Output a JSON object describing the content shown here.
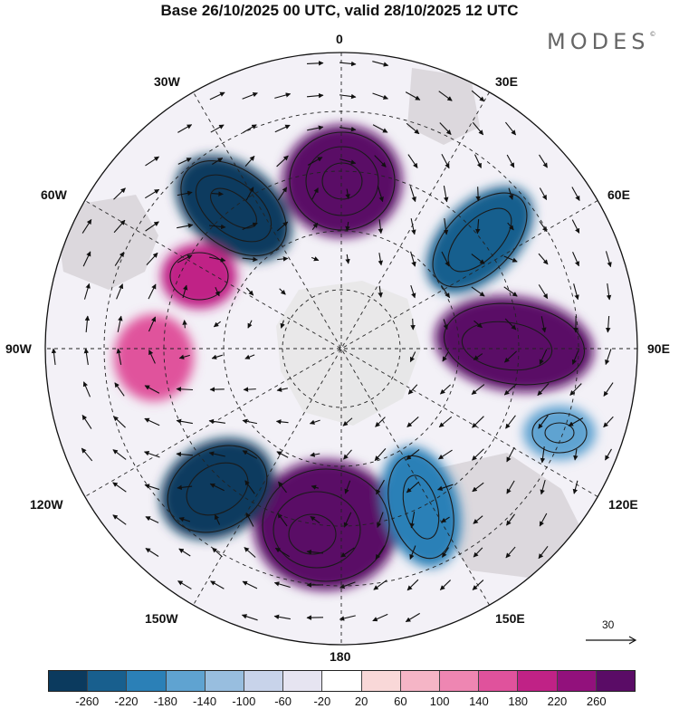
{
  "title": "Base 26/10/2025 00 UTC, valid 28/10/2025 12 UTC",
  "brand": {
    "name": "MODES",
    "mark": "©"
  },
  "meridian_labels": {
    "top": "0",
    "bottom": "180",
    "left": "90W",
    "right": "90E",
    "tl1": "30W",
    "tl2": "60W",
    "tr1": "30E",
    "tr2": "60E",
    "bl1": "120W",
    "bl2": "150W",
    "br1": "120E",
    "br2": "150E"
  },
  "reference_vector": {
    "label": "30"
  },
  "colorbar": {
    "colors": [
      "#0b3a5e",
      "#185f8e",
      "#2b80b7",
      "#5fa3d1",
      "#98bedf",
      "#c8d3ea",
      "#e6e4f1",
      "#ffffff",
      "#f9d8d8",
      "#f5b5c6",
      "#ee86b2",
      "#e0529c",
      "#c02286",
      "#92117c",
      "#5a0c66"
    ],
    "tick_labels": [
      "-260",
      "-220",
      "-180",
      "-140",
      "-100",
      "-60",
      "-20",
      "20",
      "60",
      "100",
      "140",
      "180",
      "220",
      "260"
    ]
  },
  "anomalies": [
    {
      "sign": "negative",
      "value": -280
    },
    {
      "sign": "positive",
      "value": 280
    },
    {
      "sign": "negative",
      "value": -260
    },
    {
      "sign": "positive",
      "value": 180
    },
    {
      "sign": "positive",
      "value": 140
    },
    {
      "sign": "positive",
      "value": 260
    },
    {
      "sign": "negative",
      "value": -160
    },
    {
      "sign": "positive",
      "value": 280
    },
    {
      "sign": "negative",
      "value": -280
    },
    {
      "sign": "negative",
      "value": -220
    }
  ]
}
